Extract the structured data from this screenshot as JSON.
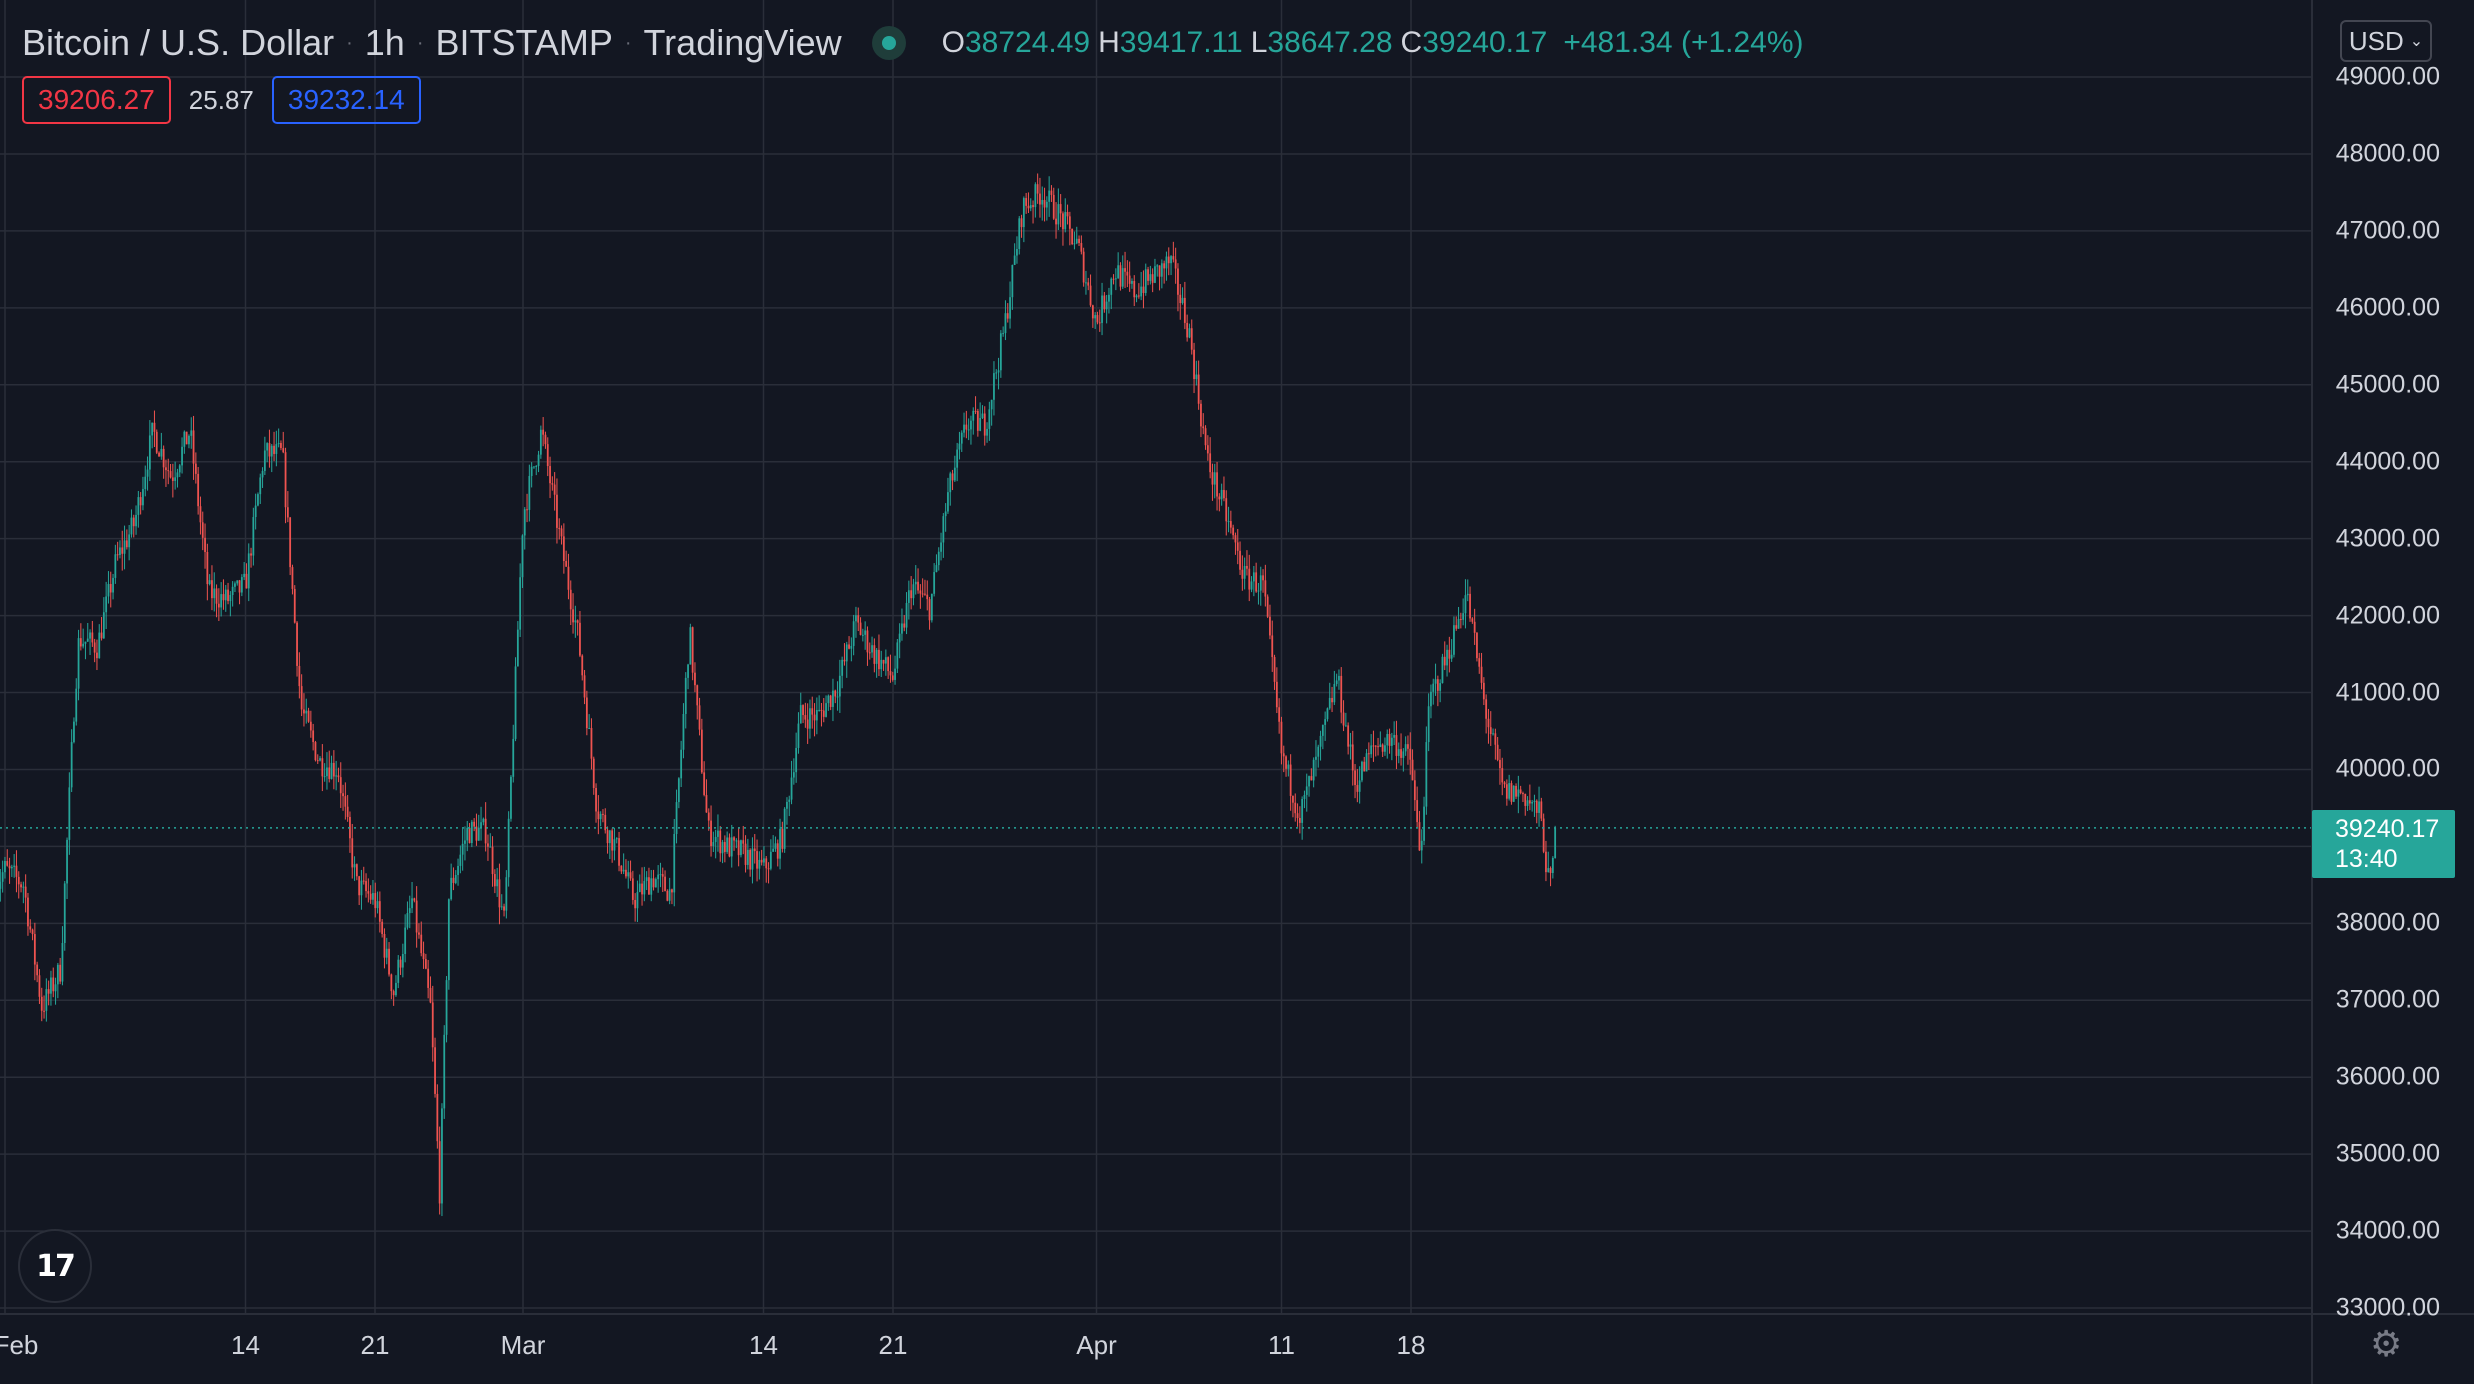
{
  "header": {
    "symbol": "Bitcoin / U.S. Dollar",
    "interval": "1h",
    "exchange": "BITSTAMP",
    "provider": "TradingView",
    "open_label": "O",
    "open": "38724.49",
    "high_label": "H",
    "high": "39417.11",
    "low_label": "L",
    "low": "38647.28",
    "close_label": "C",
    "close": "39240.17",
    "change": "+481.34 (+1.24%)"
  },
  "bid_ask": {
    "bid": "39206.27",
    "spread": "25.87",
    "ask": "39232.14"
  },
  "currency_button": "USD",
  "price_tag": {
    "price": "39240.17",
    "countdown": "13:40"
  },
  "logo_text": "17",
  "icons": {
    "gear": "settings-gear-icon",
    "dropdown": "chevron-down-icon"
  },
  "colors": {
    "background": "#131722",
    "grid": "#2a2e39",
    "up": "#26a69a",
    "down": "#ef5350",
    "bid": "#f23645",
    "ask": "#2962ff",
    "text": "#d1d4dc"
  },
  "chart_data": {
    "type": "candlestick",
    "title": "Bitcoin / U.S. Dollar",
    "interval": "1h",
    "ylim": [
      33000,
      49300
    ],
    "y_ticks": [
      "49000.00",
      "48000.00",
      "47000.00",
      "46000.00",
      "45000.00",
      "44000.00",
      "43000.00",
      "42000.00",
      "41000.00",
      "40000.00",
      "39000.00",
      "38000.00",
      "37000.00",
      "36000.00",
      "35000.00",
      "34000.00",
      "33000.00"
    ],
    "x_ticks": [
      {
        "label": "Feb",
        "date": "2022-02-01"
      },
      {
        "label": "14",
        "date": "2022-02-14"
      },
      {
        "label": "21",
        "date": "2022-02-21"
      },
      {
        "label": "Mar",
        "date": "2022-03-01"
      },
      {
        "label": "14",
        "date": "2022-03-14"
      },
      {
        "label": "21",
        "date": "2022-03-21"
      },
      {
        "label": "Apr",
        "date": "2022-04-01"
      },
      {
        "label": "11",
        "date": "2022-04-11"
      },
      {
        "label": "18",
        "date": "2022-04-18"
      }
    ],
    "last_price": 39240.17,
    "price_path": [
      {
        "date": "2022-01-31T12:00",
        "price": 38500
      },
      {
        "date": "2022-02-01",
        "price": 38700
      },
      {
        "date": "2022-02-02",
        "price": 38500
      },
      {
        "date": "2022-02-03",
        "price": 36900
      },
      {
        "date": "2022-02-04",
        "price": 37400
      },
      {
        "date": "2022-02-04T18:00",
        "price": 40900
      },
      {
        "date": "2022-02-05",
        "price": 41700
      },
      {
        "date": "2022-02-06",
        "price": 41600
      },
      {
        "date": "2022-02-07",
        "price": 42700
      },
      {
        "date": "2022-02-08",
        "price": 43200
      },
      {
        "date": "2022-02-09",
        "price": 44400
      },
      {
        "date": "2022-02-10",
        "price": 43800
      },
      {
        "date": "2022-02-11",
        "price": 44400
      },
      {
        "date": "2022-02-12",
        "price": 42300
      },
      {
        "date": "2022-02-13",
        "price": 42200
      },
      {
        "date": "2022-02-14",
        "price": 42400
      },
      {
        "date": "2022-02-15",
        "price": 44100
      },
      {
        "date": "2022-02-16",
        "price": 44100
      },
      {
        "date": "2022-02-17",
        "price": 40800
      },
      {
        "date": "2022-02-18",
        "price": 40100
      },
      {
        "date": "2022-02-19",
        "price": 40000
      },
      {
        "date": "2022-02-20",
        "price": 38500
      },
      {
        "date": "2022-02-21",
        "price": 38300
      },
      {
        "date": "2022-02-22",
        "price": 37100
      },
      {
        "date": "2022-02-23",
        "price": 38300
      },
      {
        "date": "2022-02-24",
        "price": 36900
      },
      {
        "date": "2022-02-24T12:00",
        "price": 34500
      },
      {
        "date": "2022-02-25",
        "price": 38400
      },
      {
        "date": "2022-02-26",
        "price": 39200
      },
      {
        "date": "2022-02-27",
        "price": 39200
      },
      {
        "date": "2022-02-28",
        "price": 38000
      },
      {
        "date": "2022-03-01",
        "price": 43300
      },
      {
        "date": "2022-03-02",
        "price": 44400
      },
      {
        "date": "2022-03-03",
        "price": 43000
      },
      {
        "date": "2022-03-04",
        "price": 41700
      },
      {
        "date": "2022-03-05",
        "price": 39500
      },
      {
        "date": "2022-03-06",
        "price": 39000
      },
      {
        "date": "2022-03-07",
        "price": 38300
      },
      {
        "date": "2022-03-08",
        "price": 38600
      },
      {
        "date": "2022-03-09",
        "price": 38400
      },
      {
        "date": "2022-03-10",
        "price": 41800
      },
      {
        "date": "2022-03-11",
        "price": 39200
      },
      {
        "date": "2022-03-12",
        "price": 39000
      },
      {
        "date": "2022-03-13",
        "price": 38900
      },
      {
        "date": "2022-03-14",
        "price": 38700
      },
      {
        "date": "2022-03-15",
        "price": 39100
      },
      {
        "date": "2022-03-16",
        "price": 40700
      },
      {
        "date": "2022-03-17",
        "price": 40700
      },
      {
        "date": "2022-03-18",
        "price": 41100
      },
      {
        "date": "2022-03-19",
        "price": 41900
      },
      {
        "date": "2022-03-20",
        "price": 41500
      },
      {
        "date": "2022-03-21",
        "price": 41200
      },
      {
        "date": "2022-03-22",
        "price": 42400
      },
      {
        "date": "2022-03-23",
        "price": 42100
      },
      {
        "date": "2022-03-24",
        "price": 43600
      },
      {
        "date": "2022-03-25",
        "price": 44500
      },
      {
        "date": "2022-03-26",
        "price": 44500
      },
      {
        "date": "2022-03-27",
        "price": 45700
      },
      {
        "date": "2022-03-28",
        "price": 47300
      },
      {
        "date": "2022-03-29",
        "price": 47500
      },
      {
        "date": "2022-03-30",
        "price": 47200
      },
      {
        "date": "2022-03-31",
        "price": 46800
      },
      {
        "date": "2022-04-01",
        "price": 45800
      },
      {
        "date": "2022-04-02",
        "price": 46500
      },
      {
        "date": "2022-04-03",
        "price": 46200
      },
      {
        "date": "2022-04-04",
        "price": 46400
      },
      {
        "date": "2022-04-05",
        "price": 46600
      },
      {
        "date": "2022-04-06",
        "price": 45700
      },
      {
        "date": "2022-04-07",
        "price": 44000
      },
      {
        "date": "2022-04-08",
        "price": 43300
      },
      {
        "date": "2022-04-09",
        "price": 42500
      },
      {
        "date": "2022-04-10",
        "price": 42400
      },
      {
        "date": "2022-04-11",
        "price": 40200
      },
      {
        "date": "2022-04-12",
        "price": 39400
      },
      {
        "date": "2022-04-13",
        "price": 40200
      },
      {
        "date": "2022-04-14",
        "price": 41200
      },
      {
        "date": "2022-04-15",
        "price": 39800
      },
      {
        "date": "2022-04-16",
        "price": 40300
      },
      {
        "date": "2022-04-17",
        "price": 40400
      },
      {
        "date": "2022-04-18",
        "price": 40100
      },
      {
        "date": "2022-04-18T12:00",
        "price": 38800
      },
      {
        "date": "2022-04-19",
        "price": 40900
      },
      {
        "date": "2022-04-20",
        "price": 41500
      },
      {
        "date": "2022-04-21",
        "price": 42300
      },
      {
        "date": "2022-04-22",
        "price": 40800
      },
      {
        "date": "2022-04-23",
        "price": 39700
      },
      {
        "date": "2022-04-24",
        "price": 39700
      },
      {
        "date": "2022-04-25",
        "price": 39400
      },
      {
        "date": "2022-04-25T12:00",
        "price": 38400
      },
      {
        "date": "2022-04-25T20:00",
        "price": 39240
      }
    ]
  }
}
